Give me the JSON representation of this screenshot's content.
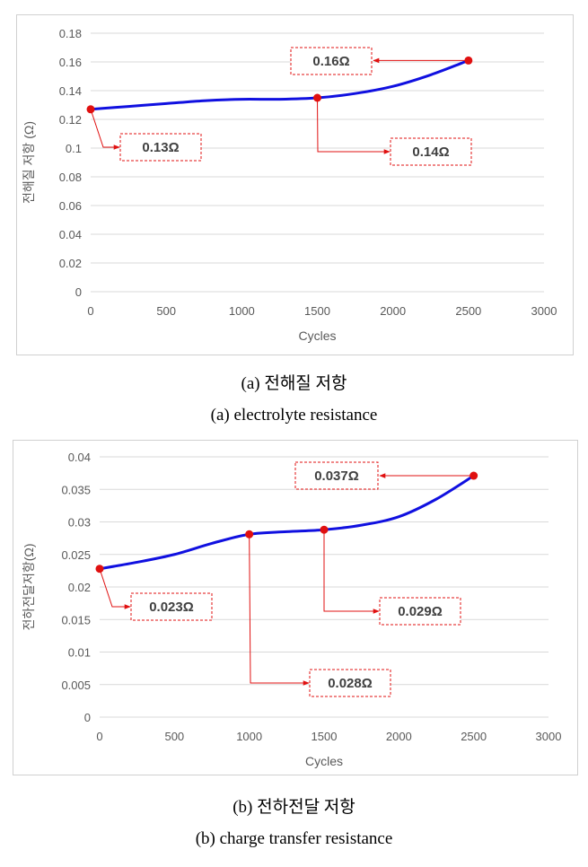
{
  "charts": [
    {
      "caption_ko": "(a)  전해질  저항",
      "caption_en": "(a)  electrolyte  resistance"
    },
    {
      "caption_ko": "(b)  전하전달  저항",
      "caption_en": "(b)  charge  transfer  resistance"
    }
  ],
  "chart_data": [
    {
      "type": "line",
      "title": "",
      "xlabel": "Cycles",
      "ylabel": "전해질 저항 (Ω)",
      "xlim": [
        0,
        3000
      ],
      "ylim": [
        0,
        0.18
      ],
      "x_ticks": [
        "0",
        "500",
        "1000",
        "1500",
        "2000",
        "2500",
        "3000"
      ],
      "y_ticks": [
        "0",
        "0.02",
        "0.04",
        "0.06",
        "0.08",
        "0.1",
        "0.12",
        "0.14",
        "0.16",
        "0.18"
      ],
      "grid": "horizontal",
      "line_color": "#1010e0",
      "marker_color": "#e01010",
      "series": [
        {
          "x": [
            0,
            250,
            500,
            750,
            1000,
            1250,
            1500,
            1750,
            2000,
            2250,
            2500
          ],
          "y": [
            0.127,
            0.129,
            0.131,
            0.133,
            0.134,
            0.134,
            0.135,
            0.138,
            0.143,
            0.151,
            0.161
          ]
        }
      ],
      "markers": [
        {
          "x": 0,
          "y": 0.127
        },
        {
          "x": 1500,
          "y": 0.135
        },
        {
          "x": 2500,
          "y": 0.161
        }
      ],
      "annotations": [
        {
          "text": "0.13Ω",
          "point": {
            "x": 0,
            "y": 0.127
          }
        },
        {
          "text": "0.14Ω",
          "point": {
            "x": 1500,
            "y": 0.135
          }
        },
        {
          "text": "0.16Ω",
          "point": {
            "x": 2500,
            "y": 0.161
          }
        }
      ]
    },
    {
      "type": "line",
      "title": "",
      "xlabel": "Cycles",
      "ylabel": "전하전달저항(Ω)",
      "xlim": [
        0,
        3000
      ],
      "ylim": [
        0,
        0.04
      ],
      "x_ticks": [
        "0",
        "500",
        "1000",
        "1500",
        "2000",
        "2500",
        "3000"
      ],
      "y_ticks": [
        "0",
        "0.005",
        "0.01",
        "0.015",
        "0.02",
        "0.025",
        "0.03",
        "0.035",
        "0.04"
      ],
      "grid": "horizontal",
      "line_color": "#1010e0",
      "marker_color": "#e01010",
      "series": [
        {
          "x": [
            0,
            250,
            500,
            750,
            1000,
            1250,
            1500,
            1750,
            2000,
            2250,
            2500
          ],
          "y": [
            0.0228,
            0.0238,
            0.025,
            0.0267,
            0.0281,
            0.0285,
            0.0288,
            0.0295,
            0.0308,
            0.0335,
            0.0371
          ]
        }
      ],
      "markers": [
        {
          "x": 0,
          "y": 0.0228
        },
        {
          "x": 1000,
          "y": 0.0281
        },
        {
          "x": 1500,
          "y": 0.0288
        },
        {
          "x": 2500,
          "y": 0.0371
        }
      ],
      "annotations": [
        {
          "text": "0.023Ω",
          "point": {
            "x": 0,
            "y": 0.0228
          }
        },
        {
          "text": "0.028Ω",
          "point": {
            "x": 1000,
            "y": 0.0281
          }
        },
        {
          "text": "0.029Ω",
          "point": {
            "x": 1500,
            "y": 0.0288
          }
        },
        {
          "text": "0.037Ω",
          "point": {
            "x": 2500,
            "y": 0.0371
          }
        }
      ]
    }
  ]
}
